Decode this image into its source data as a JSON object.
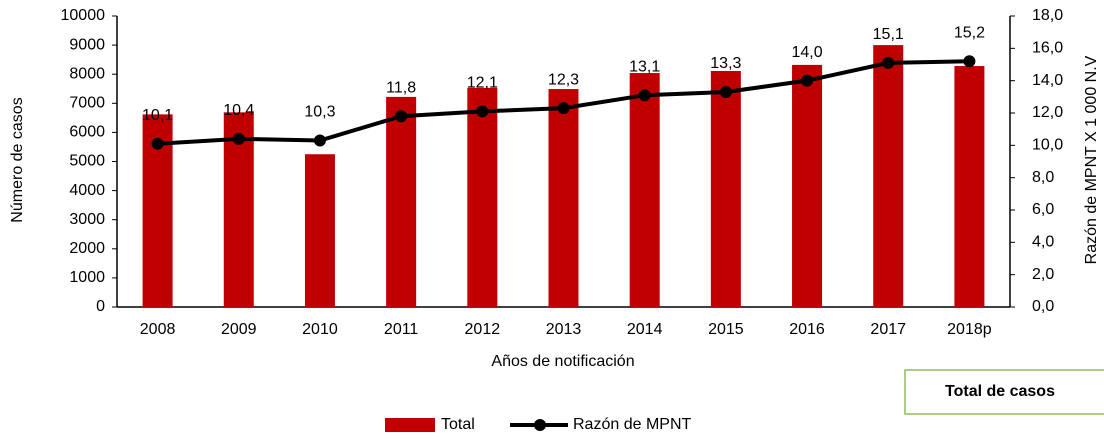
{
  "chart_data": {
    "type": "bar_line",
    "categories": [
      "2008",
      "2009",
      "2010",
      "2011",
      "2012",
      "2013",
      "2014",
      "2015",
      "2016",
      "2017",
      "2018p"
    ],
    "series": [
      {
        "name": "Total",
        "color": "#c00000",
        "type": "bar",
        "values": [
          6620,
          6690,
          5250,
          7220,
          7530,
          7490,
          8040,
          8110,
          8320,
          9000,
          8280
        ]
      },
      {
        "name": "Razón de MPNT",
        "color": "#000000",
        "type": "line",
        "axis": "y2",
        "values": [
          10.1,
          10.4,
          10.3,
          11.8,
          12.1,
          12.3,
          13.1,
          13.3,
          14.0,
          15.1,
          15.2
        ],
        "value_labels": [
          "10,1",
          "10,4",
          "10,3",
          "11,8",
          "12,1",
          "12,3",
          "13,1",
          "13,3",
          "14,0",
          "15,1",
          "15,2"
        ]
      }
    ],
    "ylim": [
      0,
      10000
    ],
    "yticks": [
      0,
      1000,
      2000,
      3000,
      4000,
      5000,
      6000,
      7000,
      8000,
      9000,
      10000
    ],
    "y2lim": [
      0,
      18
    ],
    "y2ticks": [
      {
        "value": 0,
        "label": "0,0"
      },
      {
        "value": 2,
        "label": "2,0"
      },
      {
        "value": 4,
        "label": "4,0"
      },
      {
        "value": 6,
        "label": "6,0"
      },
      {
        "value": 8,
        "label": "8,0"
      },
      {
        "value": 10,
        "label": "10,0"
      },
      {
        "value": 12,
        "label": "12,0"
      },
      {
        "value": 14,
        "label": "14,0"
      },
      {
        "value": 16,
        "label": "16,0"
      },
      {
        "value": 18,
        "label": "18,0"
      }
    ],
    "y_label": "Número de casos",
    "y2_label": "Razón de MPNT X 1 000 N.V",
    "x_label": "Años de notificación",
    "annotation": "Total de casos",
    "legend": "bottom"
  }
}
